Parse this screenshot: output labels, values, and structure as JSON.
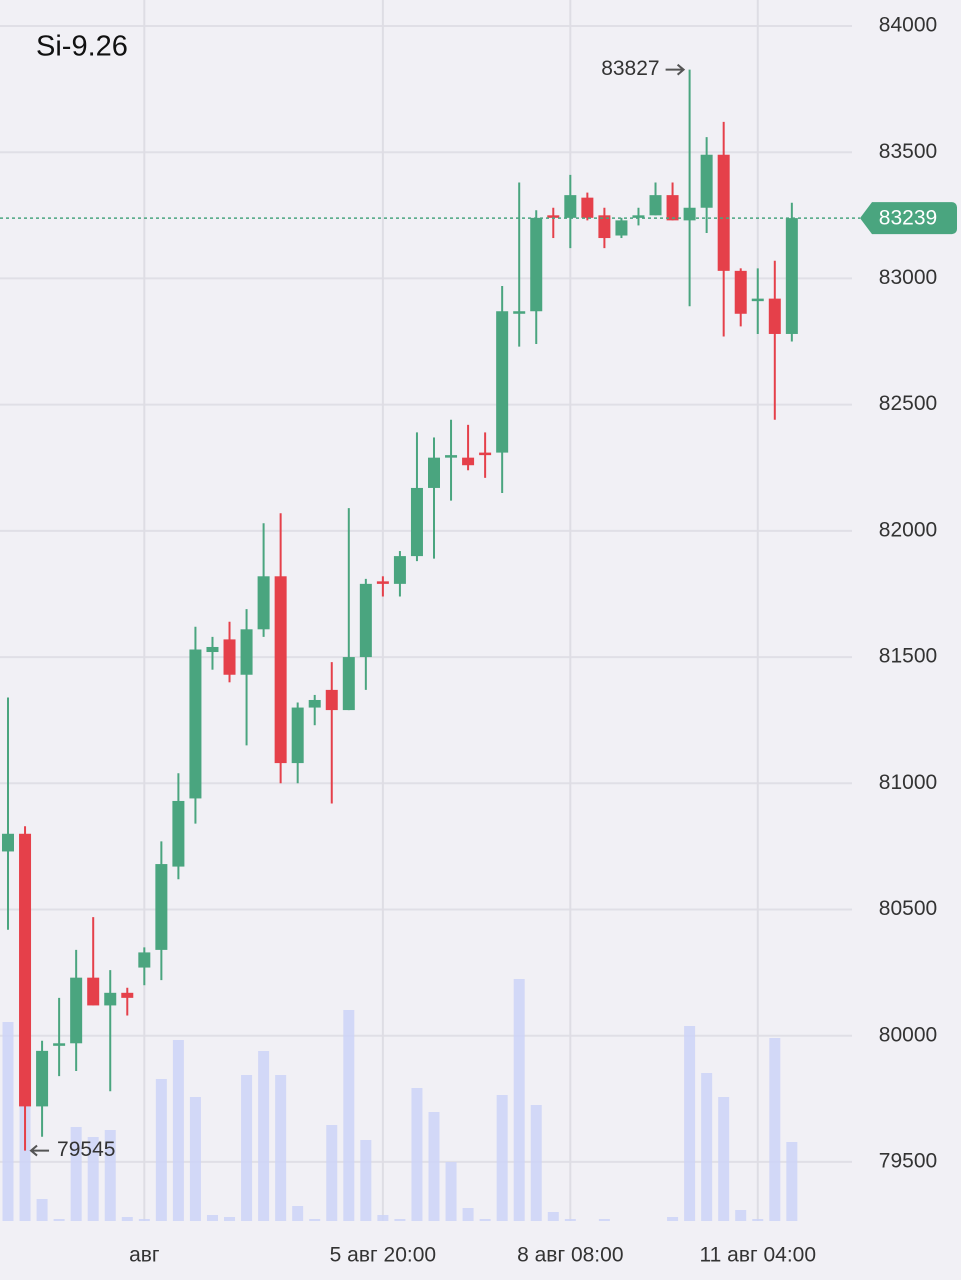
{
  "chart_data": {
    "type": "candlestick",
    "title": "Si-9.26",
    "categories": [
      null,
      null,
      null,
      null,
      null,
      null,
      null,
      null,
      "авг",
      null,
      null,
      null,
      null,
      null,
      null,
      null,
      null,
      null,
      null,
      null,
      null,
      null,
      "5 авг 20:00",
      null,
      null,
      null,
      null,
      null,
      null,
      null,
      null,
      null,
      null,
      "8 авг 08:00",
      null,
      null,
      null,
      null,
      null,
      null,
      null,
      null,
      null,
      null,
      "11 авг 04:00",
      null,
      null
    ],
    "open": [
      80730,
      80800,
      79720,
      79960,
      79970,
      80230,
      80120,
      80170,
      80270,
      80340,
      80670,
      80940,
      81520,
      81570,
      81430,
      81610,
      81820,
      81080,
      81300,
      81370,
      81290,
      81500,
      81800,
      81790,
      81900,
      82170,
      82290,
      82290,
      82310,
      82310,
      82860,
      82870,
      83250,
      83240,
      83320,
      83250,
      83170,
      83240,
      83250,
      83330,
      83230,
      83280,
      83490,
      83030,
      82910,
      82920,
      82780
    ],
    "high": [
      81340,
      80830,
      79980,
      80150,
      80340,
      80470,
      80260,
      80190,
      80350,
      80770,
      81040,
      81620,
      81580,
      81640,
      81690,
      82030,
      82070,
      81320,
      81350,
      81480,
      82090,
      81810,
      81820,
      81920,
      82390,
      82370,
      82440,
      82420,
      82390,
      82970,
      83380,
      83270,
      83280,
      83410,
      83340,
      83280,
      83240,
      83280,
      83380,
      83380,
      83827,
      83560,
      83620,
      83040,
      83040,
      83070,
      83300
    ],
    "low": [
      80420,
      79545,
      79600,
      79840,
      79860,
      80120,
      79780,
      80080,
      80200,
      80220,
      80620,
      80840,
      81450,
      81400,
      81150,
      81580,
      81000,
      81000,
      81230,
      80920,
      81290,
      81370,
      81740,
      81740,
      81880,
      81890,
      82120,
      82240,
      82210,
      82150,
      82730,
      82740,
      83160,
      83120,
      83230,
      83120,
      83160,
      83210,
      83250,
      83230,
      82890,
      83180,
      82770,
      82810,
      82780,
      82440,
      82750
    ],
    "close": [
      80800,
      79720,
      79940,
      79970,
      80230,
      80120,
      80170,
      80150,
      80330,
      80680,
      80930,
      81530,
      81540,
      81430,
      81610,
      81820,
      81080,
      81300,
      81330,
      81290,
      81500,
      81790,
      81790,
      81900,
      82170,
      82290,
      82300,
      82260,
      82300,
      82870,
      82870,
      83240,
      83240,
      83330,
      83240,
      83160,
      83230,
      83250,
      83330,
      83230,
      83280,
      83490,
      83030,
      82860,
      82920,
      82780,
      83239
    ],
    "volume": [
      199,
      149,
      22,
      2,
      94,
      84,
      91,
      4,
      2,
      142,
      181,
      124,
      6,
      4,
      146,
      170,
      146,
      15,
      2,
      96,
      211,
      81,
      6,
      2,
      133,
      109,
      59,
      13,
      2,
      126,
      242,
      116,
      9,
      2,
      0,
      2,
      0,
      0,
      0,
      4,
      195,
      148,
      124,
      11,
      2,
      183,
      79
    ],
    "up_color": "#4aa57f",
    "down_color": "#e5404a",
    "volume_color": "#cdd3f7",
    "ylim": [
      79266,
      84103
    ],
    "yticks": [
      79500,
      80000,
      80500,
      81000,
      81500,
      82000,
      82500,
      83000,
      83500,
      84000
    ],
    "grid": true
  }
}
